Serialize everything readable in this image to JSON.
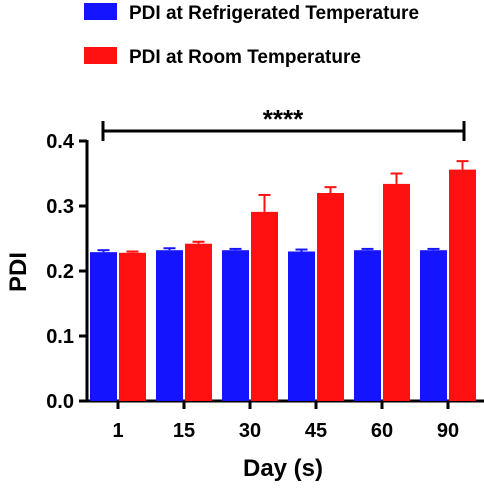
{
  "chart_data": {
    "type": "bar",
    "xlabel": "Day (s)",
    "ylabel": "PDI",
    "ylim": [
      0.0,
      0.4
    ],
    "y_ticks": [
      "0.0",
      "0.1",
      "0.2",
      "0.3",
      "0.4"
    ],
    "categories": [
      "1",
      "15",
      "30",
      "45",
      "60",
      "90"
    ],
    "series": [
      {
        "name": "PDI at Refrigerated Temperature",
        "color": "#1414ff",
        "values": [
          0.229,
          0.232,
          0.232,
          0.23,
          0.232,
          0.232
        ],
        "errors": [
          0.003,
          0.003,
          0.002,
          0.003,
          0.002,
          0.002
        ]
      },
      {
        "name": "PDI at Room Temperature",
        "color": "#ff1111",
        "values": [
          0.228,
          0.242,
          0.291,
          0.32,
          0.334,
          0.356
        ],
        "errors": [
          0.002,
          0.003,
          0.026,
          0.009,
          0.016,
          0.013
        ]
      }
    ],
    "annotation": {
      "text": "****",
      "from": "1",
      "to": "90"
    },
    "legend_position": "top"
  }
}
